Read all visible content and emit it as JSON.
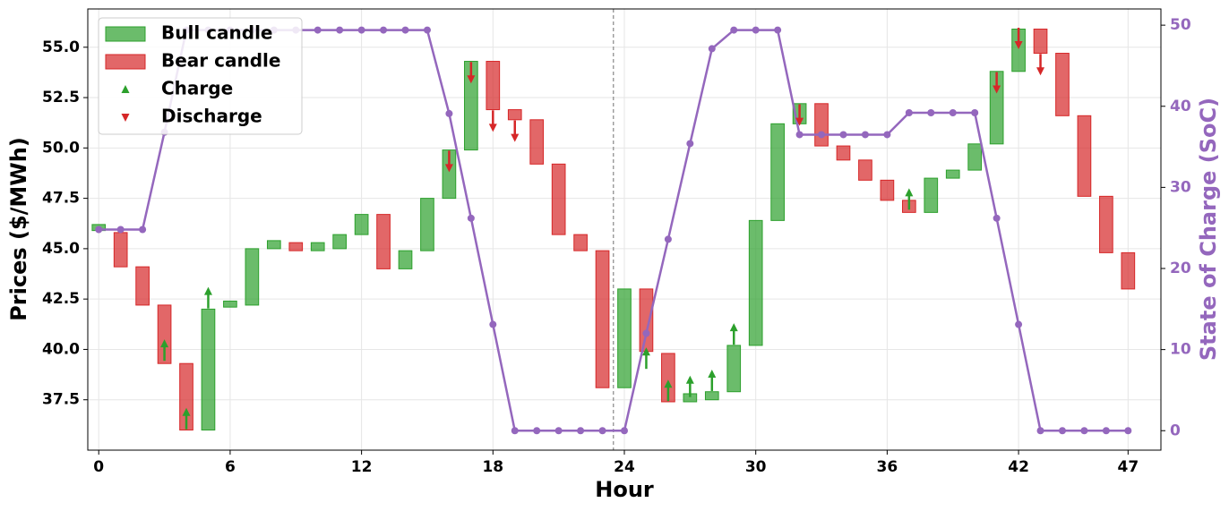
{
  "chart_data": {
    "type": "candlestick",
    "xlabel": "Hour",
    "ylabel": "Prices ($/MWh)",
    "y2label": "State of Charge (SoC)",
    "x": [
      0,
      1,
      2,
      3,
      4,
      5,
      6,
      7,
      8,
      9,
      10,
      11,
      12,
      13,
      14,
      15,
      16,
      17,
      18,
      19,
      20,
      21,
      22,
      23,
      24,
      25,
      26,
      27,
      28,
      29,
      30,
      31,
      32,
      33,
      34,
      35,
      36,
      37,
      38,
      39,
      40,
      41,
      42,
      43,
      44,
      45,
      46,
      47
    ],
    "open": [
      45.9,
      45.8,
      44.1,
      42.2,
      39.3,
      36.0,
      42.1,
      42.2,
      45.0,
      45.3,
      44.9,
      45.0,
      45.7,
      46.7,
      44.0,
      44.9,
      47.5,
      49.9,
      54.3,
      51.9,
      51.4,
      49.2,
      45.7,
      44.9,
      38.1,
      43.0,
      39.8,
      37.4,
      37.5,
      37.9,
      40.2,
      46.4,
      51.2,
      52.2,
      50.1,
      49.4,
      48.4,
      47.4,
      46.8,
      48.5,
      48.9,
      50.2,
      53.8,
      55.9,
      54.7,
      51.6,
      47.6,
      44.8
    ],
    "close": [
      46.2,
      44.1,
      42.2,
      39.3,
      36.0,
      42.0,
      42.4,
      45.0,
      45.4,
      44.9,
      45.3,
      45.7,
      46.7,
      44.0,
      44.9,
      47.5,
      49.9,
      54.3,
      51.9,
      51.4,
      49.2,
      45.7,
      44.9,
      38.1,
      43.0,
      39.9,
      37.4,
      37.8,
      37.9,
      40.2,
      46.4,
      51.2,
      52.2,
      50.1,
      49.4,
      48.4,
      47.4,
      46.8,
      48.5,
      48.9,
      50.2,
      53.8,
      55.9,
      54.7,
      51.6,
      47.6,
      44.8,
      43.0
    ],
    "bull": {
      "name": "Bull candle",
      "color": "#2ca02c"
    },
    "bear": {
      "name": "Bear candle",
      "color": "#d62728"
    },
    "charge": {
      "name": "Charge",
      "color": "#2ca02c",
      "x": [
        3,
        4,
        5,
        25,
        26,
        27,
        28,
        29,
        37
      ],
      "values": [
        40.5,
        37.1,
        43.1,
        40.1,
        38.5,
        38.7,
        39.0,
        41.3,
        48.0
      ]
    },
    "discharge": {
      "name": "Discharge",
      "color": "#d62728",
      "x": [
        16,
        17,
        18,
        19,
        32,
        41,
        42,
        43
      ],
      "values": [
        48.8,
        53.2,
        50.8,
        50.3,
        51.1,
        52.7,
        54.9,
        53.6
      ]
    },
    "soc": {
      "color": "#9467bd",
      "axis": "y2",
      "values": [
        24.8,
        24.8,
        24.8,
        36.8,
        49.4,
        49.4,
        49.4,
        49.4,
        49.4,
        49.4,
        49.4,
        49.4,
        49.4,
        49.4,
        49.4,
        49.4,
        39.1,
        26.2,
        13.1,
        0,
        0,
        0,
        0,
        0,
        0,
        12.0,
        23.6,
        35.4,
        47.1,
        49.4,
        49.4,
        49.4,
        36.5,
        36.5,
        36.5,
        36.5,
        36.5,
        39.2,
        39.2,
        39.2,
        39.2,
        26.2,
        13.1,
        0,
        0,
        0,
        0,
        0
      ]
    },
    "vline": 23.5,
    "xlim": [
      -0.5,
      48.5
    ],
    "xticks": [
      0,
      6,
      12,
      18,
      24,
      30,
      36,
      42,
      47
    ],
    "ylim": [
      35.0,
      56.9
    ],
    "yticks": [
      37.5,
      {
        "value": 40,
        "label": "40.0"
      },
      42.5,
      {
        "value": 45,
        "label": "45.0"
      },
      47.5,
      {
        "value": 50,
        "label": "50.0"
      },
      52.5,
      {
        "value": 55,
        "label": "55.0"
      }
    ],
    "y2lim": [
      -2.4,
      52
    ],
    "y2ticks": [
      0,
      10,
      20,
      30,
      40,
      50
    ],
    "grid": true,
    "legend": "upper-left"
  }
}
